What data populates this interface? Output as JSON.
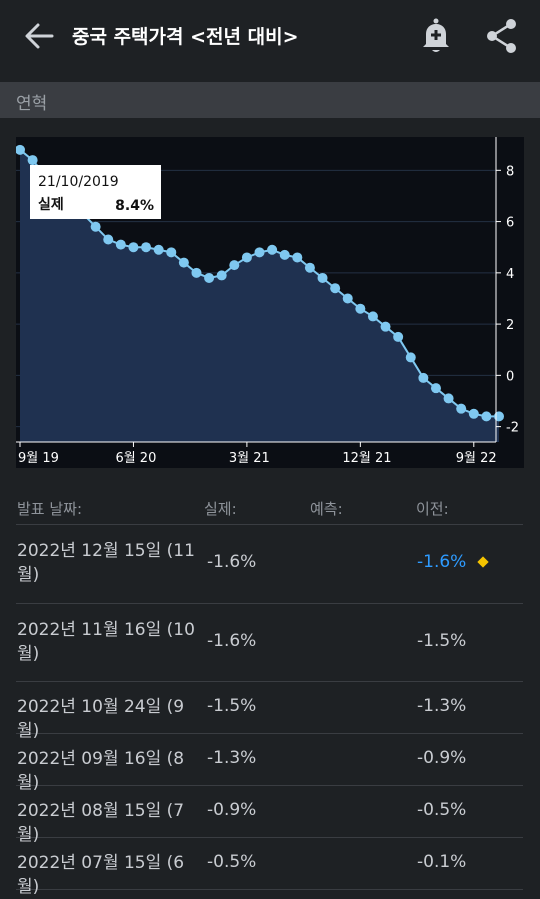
{
  "header": {
    "title": "중국 주택가격 <전년 대비>",
    "back_icon": "arrow-left-icon",
    "bell_icon": "bell-plus-icon",
    "share_icon": "share-icon"
  },
  "section": {
    "label": "연혁"
  },
  "chart_data": {
    "type": "area",
    "x": [
      "2019-09",
      "2019-10",
      "2019-11",
      "2019-12",
      "2020-01",
      "2020-02",
      "2020-03",
      "2020-04",
      "2020-05",
      "2020-06",
      "2020-07",
      "2020-08",
      "2020-09",
      "2020-10",
      "2020-11",
      "2020-12",
      "2021-01",
      "2021-02",
      "2021-03",
      "2021-04",
      "2021-05",
      "2021-06",
      "2021-07",
      "2021-08",
      "2021-09",
      "2021-10",
      "2021-11",
      "2021-12",
      "2022-01",
      "2022-02",
      "2022-03",
      "2022-04",
      "2022-05",
      "2022-06",
      "2022-07",
      "2022-08",
      "2022-09",
      "2022-10",
      "2022-11"
    ],
    "values": [
      8.8,
      8.4,
      7.8,
      7.1,
      6.7,
      6.3,
      5.8,
      5.3,
      5.1,
      5.0,
      5.0,
      4.9,
      4.8,
      4.4,
      4.0,
      3.8,
      3.9,
      4.3,
      4.6,
      4.8,
      4.9,
      4.7,
      4.6,
      4.2,
      3.8,
      3.4,
      3.0,
      2.6,
      2.3,
      1.9,
      1.5,
      0.7,
      -0.1,
      -0.5,
      -0.9,
      -1.3,
      -1.5,
      -1.6,
      -1.6
    ],
    "xticks": [
      {
        "x": "2019-09",
        "label": "9월 19"
      },
      {
        "x": "2020-06",
        "label": "6월 20"
      },
      {
        "x": "2021-03",
        "label": "3월 21"
      },
      {
        "x": "2021-12",
        "label": "12월 21"
      },
      {
        "x": "2022-09",
        "label": "9월 22"
      }
    ],
    "yticks": [
      8,
      6,
      4,
      2,
      0,
      -2
    ],
    "ylim": [
      -2.6,
      9.3
    ],
    "tooltip": {
      "date": "21/10/2019",
      "label": "실제",
      "value": "8.4%",
      "index": 1
    },
    "colors": {
      "line": "#7fc8f0",
      "fill": "#1f3150",
      "bg": "#0b0e14",
      "grid": "#243043"
    }
  },
  "table": {
    "headers": {
      "date": "발표 날짜:",
      "actual": "실제:",
      "forecast": "예측:",
      "previous": "이전:"
    },
    "rows": [
      {
        "date": "2022년 12월 15일 (11월)",
        "actual": "-1.6%",
        "previous": "-1.6%",
        "highlight": true
      },
      {
        "date": "2022년 11월 16일 (10월)",
        "actual": "-1.6%",
        "previous": "-1.5%"
      },
      {
        "date": "2022년 10월 24일 (9월)",
        "actual": "-1.5%",
        "previous": "-1.3%"
      },
      {
        "date": "2022년 09월 16일 (8월)",
        "actual": "-1.3%",
        "previous": "-0.9%"
      },
      {
        "date": "2022년 08월 15일 (7월)",
        "actual": "-0.9%",
        "previous": "-0.5%"
      },
      {
        "date": "2022년 07월 15일 (6월)",
        "actual": "-0.5%",
        "previous": "-0.1%"
      }
    ]
  }
}
